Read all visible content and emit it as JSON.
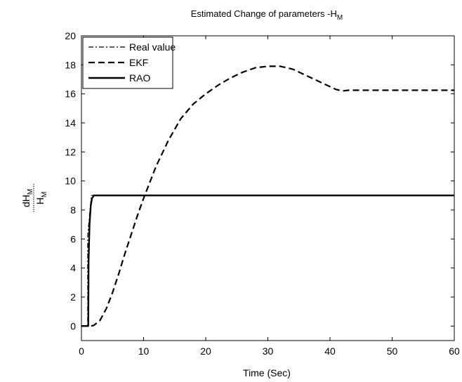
{
  "chart_data": {
    "type": "line",
    "title": {
      "main": "Estimated Change of parameters -H",
      "sub": "M"
    },
    "xlabel": "Time (Sec)",
    "ylabel": {
      "numerator": "dH",
      "numerator_sub": "M",
      "denominator": "H",
      "denominator_sub": "M"
    },
    "xlim": [
      0,
      60
    ],
    "ylim": [
      -1,
      20
    ],
    "xticks": [
      0,
      10,
      20,
      30,
      40,
      50,
      60
    ],
    "yticks": [
      0,
      2,
      4,
      6,
      8,
      10,
      12,
      14,
      16,
      18,
      20
    ],
    "grid": false,
    "legend_position": "top-left",
    "series": [
      {
        "name": "Real value",
        "style": "dashdot",
        "color": "#000000",
        "x": [
          0,
          1.0,
          1.01,
          1.6,
          60
        ],
        "y": [
          0,
          0,
          6.3,
          9,
          9
        ]
      },
      {
        "name": "EKF",
        "style": "dashed",
        "color": "#000000",
        "x": [
          0,
          1.5,
          2,
          3,
          4,
          5,
          6,
          7,
          8,
          9,
          10,
          12,
          14,
          16,
          18,
          20,
          22,
          24,
          26,
          28,
          30,
          32,
          34,
          36,
          38,
          40,
          41,
          42,
          43,
          45,
          50,
          55,
          60
        ],
        "y": [
          0,
          0,
          0.05,
          0.4,
          1.2,
          2.3,
          3.6,
          5.0,
          6.3,
          7.6,
          8.8,
          11.0,
          12.8,
          14.3,
          15.3,
          16.0,
          16.6,
          17.1,
          17.5,
          17.8,
          17.9,
          17.9,
          17.7,
          17.3,
          16.9,
          16.5,
          16.3,
          16.2,
          16.25,
          16.25,
          16.25,
          16.25,
          16.25
        ]
      },
      {
        "name": "RAO",
        "style": "solid",
        "color": "#000000",
        "x": [
          0,
          1.1,
          1.15,
          1.3,
          1.5,
          1.7,
          2.0,
          2.3,
          60
        ],
        "y": [
          0,
          0,
          4.5,
          7.0,
          8.3,
          8.8,
          9.0,
          9.0,
          9.0
        ]
      }
    ]
  }
}
